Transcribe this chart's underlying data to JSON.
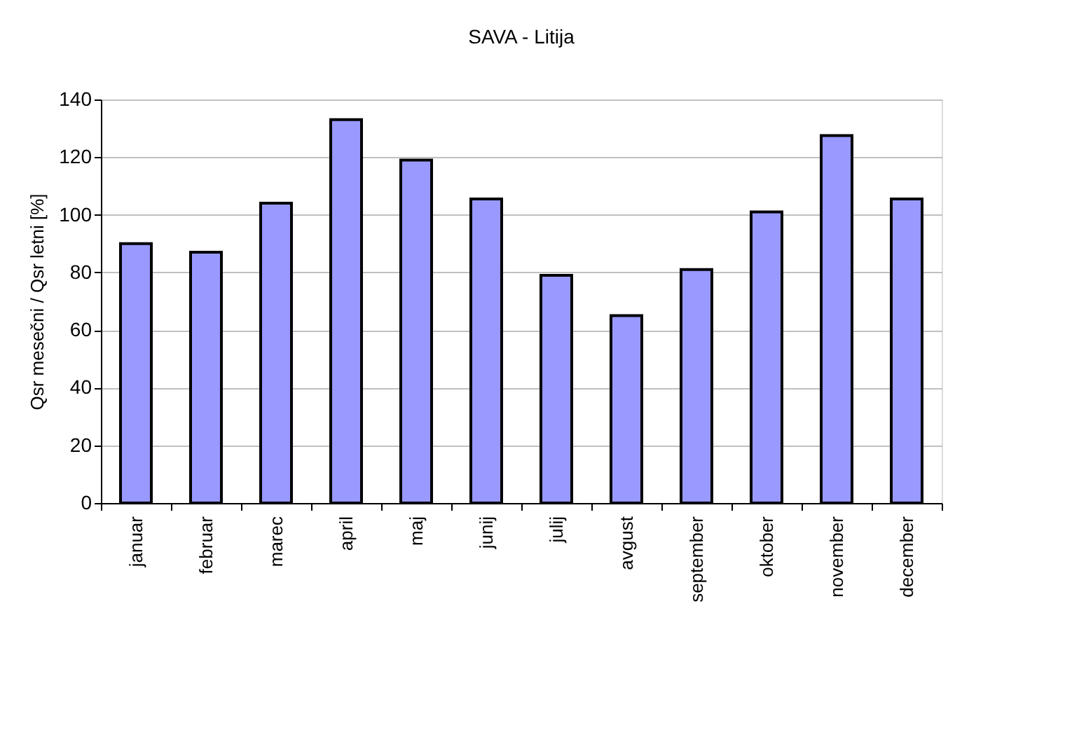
{
  "chart_data": {
    "type": "bar",
    "title": "SAVA - Litija",
    "ylabel": "Qsr mesečni / Qsr letni [%]",
    "categories": [
      "januar",
      "februar",
      "marec",
      "april",
      "maj",
      "junij",
      "julij",
      "avgust",
      "september",
      "oktober",
      "november",
      "december"
    ],
    "values": [
      90,
      87,
      104,
      133,
      119,
      105.5,
      79,
      65,
      81,
      101,
      127.5,
      105.5
    ],
    "color": "#9999ff",
    "ylim": [
      0,
      140
    ],
    "yticks": [
      0,
      20,
      40,
      60,
      80,
      100,
      120,
      140
    ],
    "grid": "y"
  }
}
